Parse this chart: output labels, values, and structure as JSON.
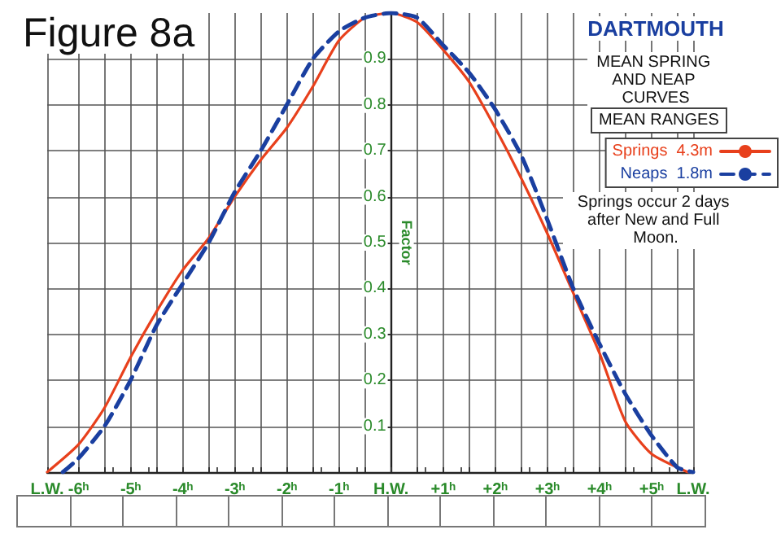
{
  "chart_data": {
    "type": "line",
    "title": "Figure 8a",
    "subtitle": "DARTMOUTH",
    "ylabel": "Factor",
    "legend_title": "MEAN RANGES",
    "annotations": [
      "MEAN SPRING AND NEAP CURVES",
      "Springs occur 2 days after New and Full Moon."
    ],
    "series": [
      {
        "name": "Springs  4.3m",
        "color": "#e8401c",
        "line_style": "solid",
        "x": [
          -6.6,
          -6,
          -5.5,
          -5,
          -4.5,
          -4,
          -3.5,
          -3,
          -2.5,
          -2,
          -1.5,
          -1,
          -0.5,
          0,
          0.5,
          1,
          1.5,
          2,
          2.5,
          3,
          3.5,
          4,
          4.5,
          5,
          5.7
        ],
        "values": [
          0,
          0.06,
          0.14,
          0.25,
          0.35,
          0.44,
          0.51,
          0.6,
          0.68,
          0.75,
          0.84,
          0.94,
          0.99,
          1,
          0.98,
          0.92,
          0.85,
          0.75,
          0.64,
          0.52,
          0.39,
          0.26,
          0.11,
          0.04,
          0
        ]
      },
      {
        "name": "Neaps  1.8m",
        "color": "#1a3fa0",
        "line_style": "dashed",
        "x": [
          -6.3,
          -6,
          -5.5,
          -5,
          -4.5,
          -4,
          -3.5,
          -3,
          -2.5,
          -2,
          -1.5,
          -1,
          -0.5,
          0,
          0.5,
          1,
          1.5,
          2,
          2.5,
          3,
          3.5,
          4,
          4.5,
          5,
          5.5,
          5.8
        ],
        "values": [
          0,
          0.03,
          0.1,
          0.2,
          0.32,
          0.41,
          0.5,
          0.61,
          0.7,
          0.8,
          0.9,
          0.96,
          0.99,
          1,
          0.99,
          0.93,
          0.87,
          0.79,
          0.69,
          0.55,
          0.4,
          0.28,
          0.17,
          0.08,
          0.01,
          0
        ]
      }
    ],
    "xlim": [
      -6.6,
      5.8
    ],
    "xticks": [
      {
        "value": -6.6,
        "label": "L.W."
      },
      {
        "value": -6,
        "label": "-6ʰ"
      },
      {
        "value": -5.5,
        "label": null
      },
      {
        "value": -5,
        "label": "-5ʰ"
      },
      {
        "value": -4.5,
        "label": null
      },
      {
        "value": -4,
        "label": "-4ʰ"
      },
      {
        "value": -3.5,
        "label": null
      },
      {
        "value": -3,
        "label": "-3ʰ"
      },
      {
        "value": -2.5,
        "label": null
      },
      {
        "value": -2,
        "label": "-2ʰ"
      },
      {
        "value": -1.5,
        "label": null
      },
      {
        "value": -1,
        "label": "-1ʰ"
      },
      {
        "value": -0.5,
        "label": null
      },
      {
        "value": 0,
        "label": "H.W."
      },
      {
        "value": 0.5,
        "label": null
      },
      {
        "value": 1,
        "label": "+1ʰ"
      },
      {
        "value": 1.5,
        "label": null
      },
      {
        "value": 2,
        "label": "+2ʰ"
      },
      {
        "value": 2.5,
        "label": null
      },
      {
        "value": 3,
        "label": "+3ʰ"
      },
      {
        "value": 3.5,
        "label": null
      },
      {
        "value": 4,
        "label": "+4ʰ"
      },
      {
        "value": 4.5,
        "label": null
      },
      {
        "value": 5,
        "label": "+5ʰ"
      },
      {
        "value": 5.5,
        "label": null
      },
      {
        "value": 5.8,
        "label": "L.W."
      }
    ],
    "ylim": [
      0,
      1
    ],
    "yticks": [
      0.1,
      0.2,
      0.3,
      0.4,
      0.5,
      0.6,
      0.7,
      0.8,
      0.9
    ],
    "grid": true,
    "legend": "top right"
  }
}
